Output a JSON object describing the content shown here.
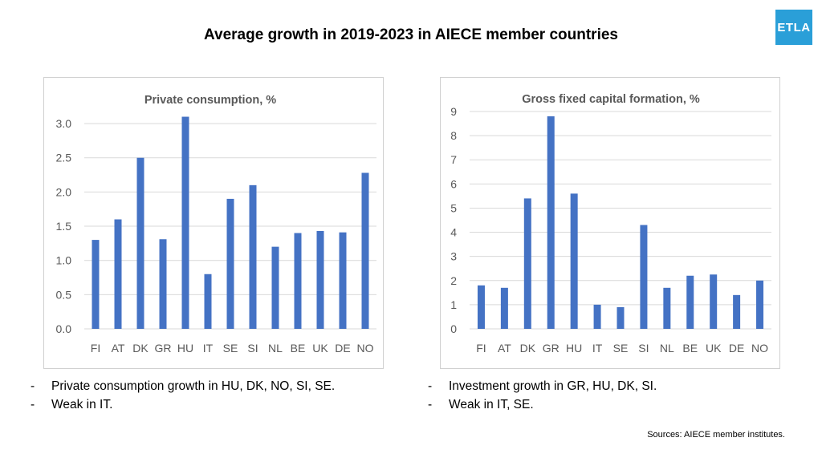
{
  "slide": {
    "title": "Average growth in 2019-2023 in AIECE member countries",
    "logo_text": "ETLA",
    "logo_color": "#2a9fd8",
    "bar_color": "#4472c4",
    "sources": "Sources: AIECE member institutes."
  },
  "notes_left": [
    {
      "dash": "-",
      "text": "Private consumption growth in HU, DK, NO, SI, SE."
    },
    {
      "dash": "-",
      "text": "Weak in IT."
    }
  ],
  "notes_right": [
    {
      "dash": "-",
      "text": "Investment growth in GR, HU, DK, SI."
    },
    {
      "dash": "-",
      "text": "Weak in IT, SE."
    }
  ],
  "chart_data": [
    {
      "type": "bar",
      "title": "Private consumption, %",
      "categories": [
        "FI",
        "AT",
        "DK",
        "GR",
        "HU",
        "IT",
        "SE",
        "SI",
        "NL",
        "BE",
        "UK",
        "DE",
        "NO"
      ],
      "values": [
        1.3,
        1.6,
        2.5,
        1.31,
        3.1,
        0.8,
        1.9,
        2.1,
        1.2,
        1.4,
        1.43,
        1.41,
        2.28
      ],
      "yticks": [
        "0.0",
        "0.5",
        "1.0",
        "1.5",
        "2.0",
        "2.5",
        "3.0"
      ],
      "ylim": [
        0,
        3.2
      ],
      "grid": true,
      "legend": "none"
    },
    {
      "type": "bar",
      "title": "Gross fixed capital formation, %",
      "categories": [
        "FI",
        "AT",
        "DK",
        "GR",
        "HU",
        "IT",
        "SE",
        "SI",
        "NL",
        "BE",
        "UK",
        "DE",
        "NO"
      ],
      "values": [
        1.8,
        1.7,
        5.4,
        8.8,
        5.6,
        1.0,
        0.9,
        4.3,
        1.7,
        2.2,
        2.25,
        1.4,
        2.0
      ],
      "yticks": [
        "0",
        "1",
        "2",
        "3",
        "4",
        "5",
        "6",
        "7",
        "8",
        "9"
      ],
      "ylim": [
        0,
        9
      ],
      "grid": true,
      "legend": "none"
    }
  ]
}
